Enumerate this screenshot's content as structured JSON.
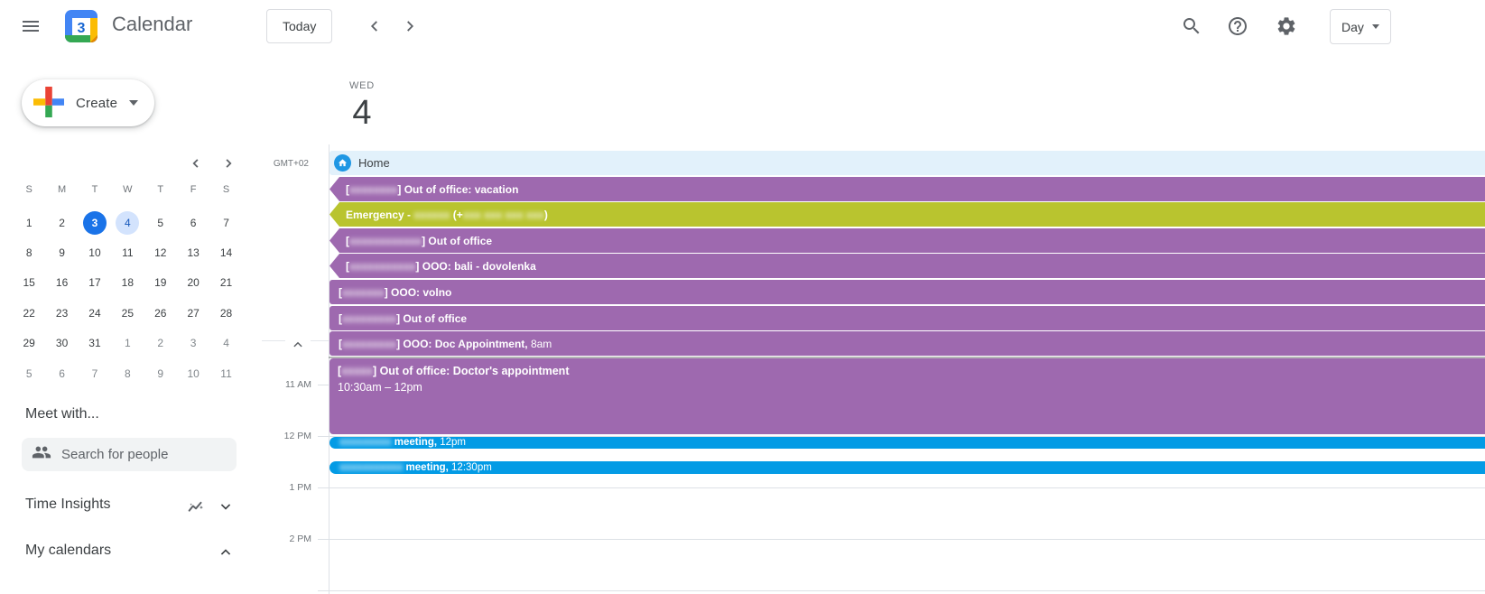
{
  "topbar": {
    "app_name": "Calendar",
    "logo_day": "3",
    "today_label": "Today",
    "view_label": "Day"
  },
  "sidebar": {
    "create_label": "Create",
    "mini_calendar": {
      "day_headers": [
        "S",
        "M",
        "T",
        "W",
        "T",
        "F",
        "S"
      ],
      "days": [
        {
          "n": 1
        },
        {
          "n": 2
        },
        {
          "n": 3,
          "today": true
        },
        {
          "n": 4,
          "selected": true
        },
        {
          "n": 5
        },
        {
          "n": 6
        },
        {
          "n": 7
        },
        {
          "n": 8
        },
        {
          "n": 9
        },
        {
          "n": 10
        },
        {
          "n": 11
        },
        {
          "n": 12
        },
        {
          "n": 13
        },
        {
          "n": 14
        },
        {
          "n": 15
        },
        {
          "n": 16
        },
        {
          "n": 17
        },
        {
          "n": 18
        },
        {
          "n": 19
        },
        {
          "n": 20
        },
        {
          "n": 21
        },
        {
          "n": 22
        },
        {
          "n": 23
        },
        {
          "n": 24
        },
        {
          "n": 25
        },
        {
          "n": 26
        },
        {
          "n": 27
        },
        {
          "n": 28
        },
        {
          "n": 29
        },
        {
          "n": 30
        },
        {
          "n": 31
        },
        {
          "n": 1,
          "muted": true
        },
        {
          "n": 2,
          "muted": true
        },
        {
          "n": 3,
          "muted": true
        },
        {
          "n": 4,
          "muted": true
        },
        {
          "n": 5,
          "muted": true
        },
        {
          "n": 6,
          "muted": true
        },
        {
          "n": 7,
          "muted": true
        },
        {
          "n": 8,
          "muted": true
        },
        {
          "n": 9,
          "muted": true
        },
        {
          "n": 10,
          "muted": true
        },
        {
          "n": 11,
          "muted": true
        }
      ]
    },
    "meet_with_label": "Meet with...",
    "search_people_placeholder": "Search for people",
    "time_insights_label": "Time Insights",
    "my_calendars_label": "My calendars"
  },
  "main": {
    "timezone": "GMT+02",
    "weekday": "WED",
    "day_number": "4",
    "hour_labels": [
      "11 AM",
      "12 PM",
      "1 PM",
      "2 PM"
    ],
    "home_label": "Home",
    "allday_events": [
      {
        "color": "purple",
        "continues_left": true,
        "segments": [
          {
            "t": "["
          },
          {
            "t": "xxxxxxxx",
            "r": true
          },
          {
            "t": "] Out of office: vacation"
          }
        ]
      },
      {
        "color": "olive",
        "continues_left": true,
        "segments": [
          {
            "t": "Emergency - "
          },
          {
            "t": "xxxxxx",
            "r": true
          },
          {
            "t": " (+"
          },
          {
            "t": "xxx xxx xxx xxx",
            "r": true
          },
          {
            "t": ")"
          }
        ]
      },
      {
        "color": "purple",
        "continues_left": true,
        "segments": [
          {
            "t": "["
          },
          {
            "t": "xxxxxxxxxxxx",
            "r": true
          },
          {
            "t": "] Out of office"
          }
        ]
      },
      {
        "color": "purple",
        "continues_left": true,
        "segments": [
          {
            "t": "["
          },
          {
            "t": "xxxxxxxxxxx",
            "r": true
          },
          {
            "t": "] OOO: bali - dovolenka"
          }
        ]
      },
      {
        "color": "purple",
        "continues_left": false,
        "segments": [
          {
            "t": "["
          },
          {
            "t": "xxxxxxx",
            "r": true
          },
          {
            "t": "] OOO: volno"
          }
        ]
      },
      {
        "color": "purple",
        "continues_left": false,
        "segments": [
          {
            "t": "["
          },
          {
            "t": "xxxxxxxxx",
            "r": true
          },
          {
            "t": "] Out of office"
          }
        ]
      },
      {
        "color": "purple",
        "continues_left": false,
        "segments": [
          {
            "t": "["
          },
          {
            "t": "xxxxxxxxx",
            "r": true
          },
          {
            "t": "] OOO: Doc Appointment,"
          },
          {
            "t": " 8am",
            "time": true
          }
        ]
      }
    ],
    "timed_events": [
      {
        "color": "purple",
        "segments": [
          {
            "t": "["
          },
          {
            "t": "xxxxx",
            "r": true
          },
          {
            "t": "] Out of office: Doctor's appointment"
          }
        ],
        "time_range": "10:30am – 12pm"
      },
      {
        "color": "blue",
        "segments": [
          {
            "t": "xxxxxxxxx",
            "r": true
          },
          {
            "t": " meeting,"
          },
          {
            "t": " 12pm",
            "time": true
          }
        ]
      },
      {
        "color": "blue",
        "segments": [
          {
            "t": "xxxxxxxxxxx",
            "r": true
          },
          {
            "t": " meeting,"
          },
          {
            "t": " 12:30pm",
            "time": true
          }
        ]
      }
    ]
  },
  "colors": {
    "purple": "#9e69af",
    "olive": "#b9c42f",
    "blue": "#039be5",
    "home_bar_bg": "#e2f1fb",
    "home_icon_bg": "#1e97e4",
    "today_circle_bg": "#1a73e8",
    "today_circle_text": "#ffffff",
    "selected_circle_bg": "#d3e3fd",
    "selected_circle_text": "#185abc"
  }
}
